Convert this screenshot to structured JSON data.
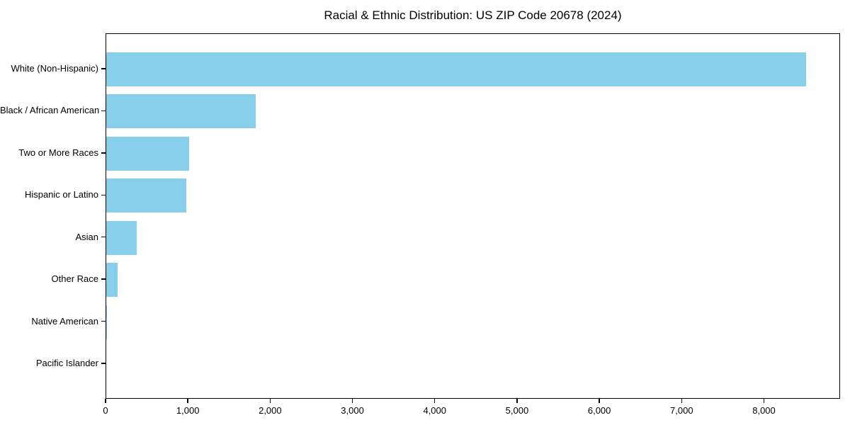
{
  "chart_data": {
    "type": "bar",
    "orientation": "horizontal",
    "title": "Racial & Ethnic Distribution: US ZIP Code 20678 (2024)",
    "categories": [
      "White (Non-Hispanic)",
      "Black / African American",
      "Two or More Races",
      "Hispanic or Latino",
      "Asian",
      "Other Race",
      "Native American",
      "Pacific Islander"
    ],
    "values": [
      8500,
      1815,
      1005,
      970,
      370,
      140,
      12,
      0
    ],
    "xlabel": "",
    "ylabel": "",
    "xlim": [
      0,
      8925
    ],
    "x_ticks": [
      0,
      1000,
      2000,
      3000,
      4000,
      5000,
      6000,
      7000,
      8000
    ],
    "x_tick_labels": [
      "0",
      "1,000",
      "2,000",
      "3,000",
      "4,000",
      "5,000",
      "6,000",
      "7,000",
      "8,000"
    ],
    "grid": false,
    "legend": "none",
    "bar_color": "#87CEEB",
    "axis_color": "#000000",
    "background_color": "#FFFFFF",
    "bar_height_fraction": 0.8
  }
}
